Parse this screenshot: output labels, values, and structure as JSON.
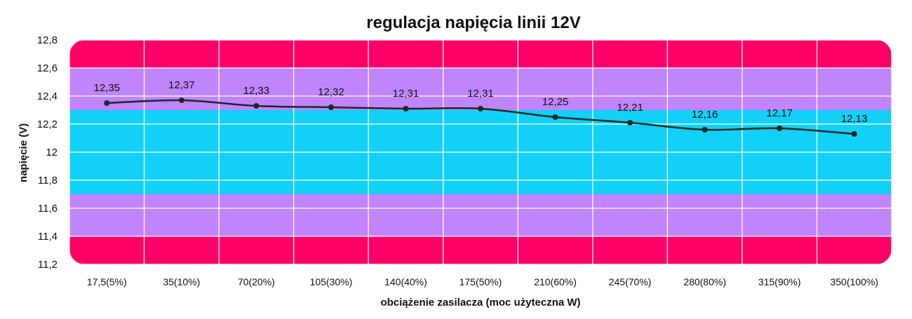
{
  "chart_data": {
    "type": "line",
    "title": "regulacja napięcia linii 12V",
    "xlabel": "obciążenie zasilacza (moc użyteczna W)",
    "ylabel": "napięcie (V)",
    "categories": [
      "17,5(5%)",
      "35(10%)",
      "70(20%)",
      "105(30%)",
      "140(40%)",
      "175(50%)",
      "210(60%)",
      "245(70%)",
      "280(80%)",
      "315(90%)",
      "350(100%)"
    ],
    "series": [
      {
        "values": [
          12.35,
          12.37,
          12.33,
          12.32,
          12.31,
          12.31,
          12.25,
          12.21,
          12.16,
          12.17,
          12.13
        ],
        "data_labels": [
          "12,35",
          "12,37",
          "12,33",
          "12,32",
          "12,31",
          "12,31",
          "12,25",
          "12,21",
          "12,16",
          "12,17",
          "12,13"
        ],
        "color": "#1a2a22"
      }
    ],
    "ylim": [
      11.2,
      12.8
    ],
    "yticks": [
      11.2,
      11.4,
      11.6,
      11.8,
      12.0,
      12.2,
      12.4,
      12.6,
      12.8
    ],
    "ytick_labels": [
      "11,2",
      "11,4",
      "11,6",
      "11,8",
      "12",
      "12,2",
      "12,4",
      "12,6",
      "12,8"
    ],
    "bands": [
      {
        "from": 11.4,
        "to": 11.7,
        "color": "#c084fc"
      },
      {
        "from": 11.7,
        "to": 12.3,
        "color": "#12d0f8"
      },
      {
        "from": 12.3,
        "to": 12.6,
        "color": "#c084fc"
      }
    ],
    "outer_band_color": "#ff0066",
    "grid": true
  }
}
